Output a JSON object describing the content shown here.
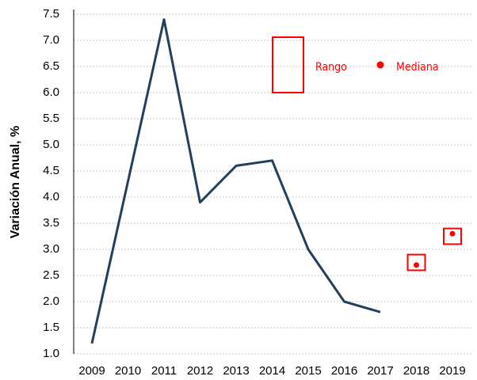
{
  "chart_data": {
    "type": "line",
    "y_label": "Variación Anual, %",
    "categories": [
      "2009",
      "2010",
      "2011",
      "2012",
      "2013",
      "2014",
      "2015",
      "2016",
      "2017",
      "2018",
      "2019"
    ],
    "series": [
      {
        "color": "#243f5c",
        "values": [
          1.2,
          4.3,
          7.4,
          3.9,
          4.6,
          4.7,
          3.0,
          2.0,
          1.8,
          null,
          null
        ]
      }
    ],
    "range_series": {
      "name": "Rango",
      "color": "#ff0000",
      "low": [
        null,
        null,
        null,
        null,
        null,
        null,
        null,
        null,
        null,
        2.6,
        3.1
      ],
      "high": [
        null,
        null,
        null,
        null,
        null,
        null,
        null,
        null,
        null,
        2.9,
        3.4
      ]
    },
    "median_series": {
      "name": "Mediana",
      "color": "#ff0000",
      "values": [
        null,
        null,
        null,
        null,
        null,
        null,
        null,
        null,
        null,
        2.7,
        3.3
      ]
    },
    "ylim": [
      1.0,
      7.5
    ],
    "yticks": [
      {
        "value": 1,
        "label": "1.0"
      },
      1.5,
      {
        "value": 2,
        "label": "2.0"
      },
      2.5,
      {
        "value": 3,
        "label": "3.0"
      },
      3.5,
      {
        "value": 4,
        "label": "4.0"
      },
      4.5,
      {
        "value": 5,
        "label": "5.0"
      },
      5.5,
      {
        "value": 6,
        "label": "6.0"
      },
      6.5,
      {
        "value": 7,
        "label": "7.0"
      },
      7.5
    ],
    "grid": true
  }
}
